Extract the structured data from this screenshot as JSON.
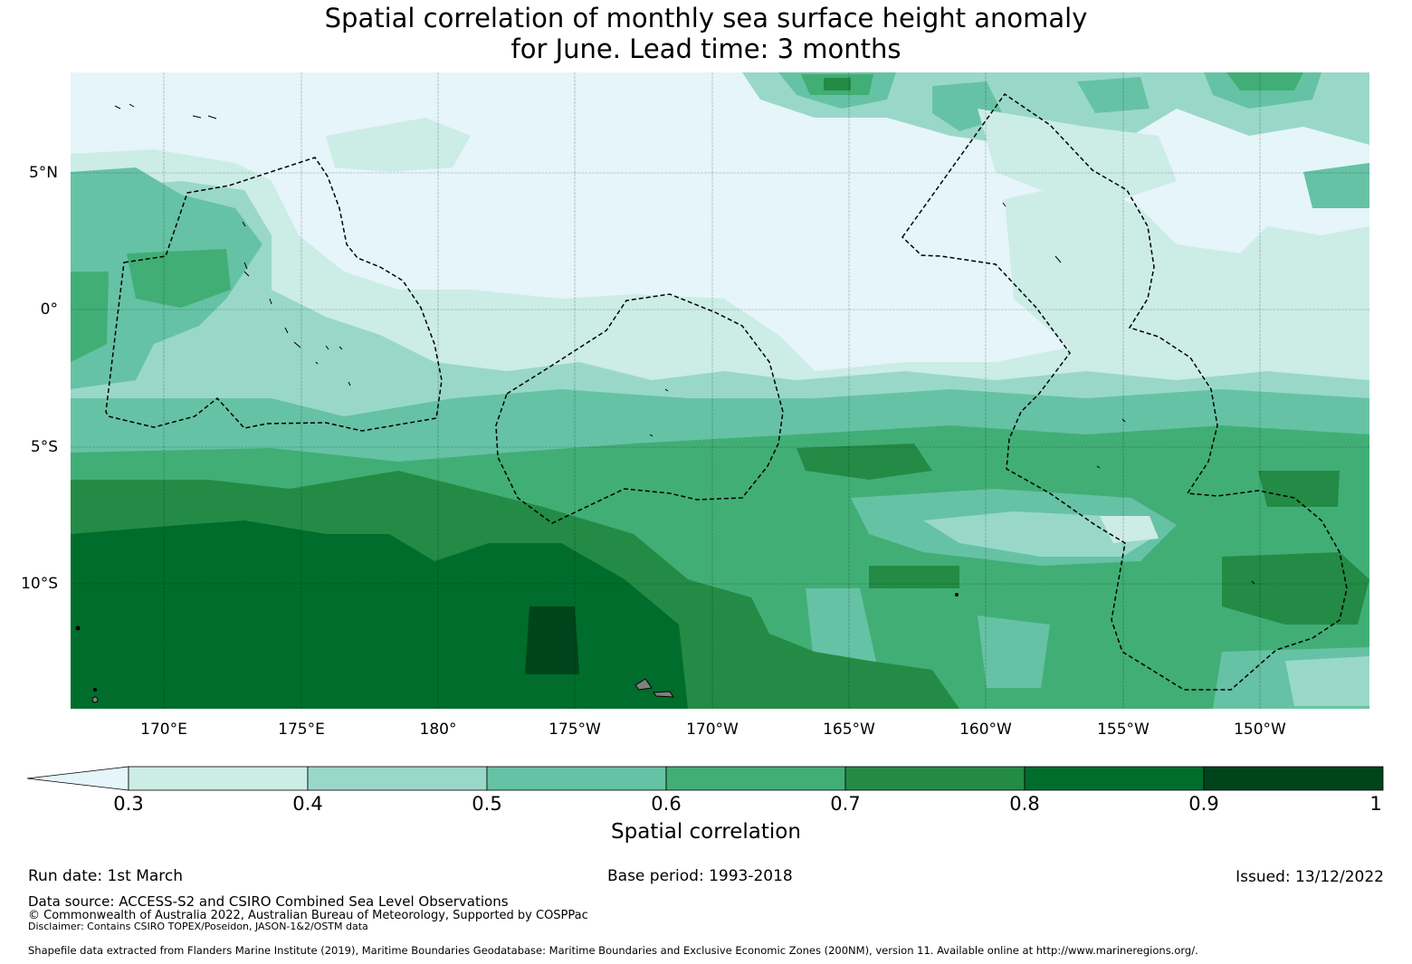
{
  "title": {
    "line1": "Spatial correlation of monthly sea surface height anomaly",
    "line2": "for June. Lead time: 3 months"
  },
  "map": {
    "lat_labels": [
      "5°N",
      "0°",
      "5°S",
      "10°S"
    ],
    "lon_labels": [
      "170°E",
      "175°E",
      "180°",
      "175°W",
      "170°W",
      "165°W",
      "160°W",
      "155°W",
      "150°W"
    ],
    "colors": {
      "lt_0_3": "#e5f5f9",
      "0.3-0.4": "#ccece6",
      "0.4-0.5": "#99d8c9",
      "0.5-0.6": "#66c2a4",
      "0.6-0.7": "#41ae76",
      "0.7-0.8": "#238b45",
      "0.8-0.9": "#006d2c",
      "0.9-1": "#00441b",
      "land": "#808080",
      "eez_boundary": "#000000"
    }
  },
  "colorbar": {
    "ticks": [
      "0.3",
      "0.4",
      "0.5",
      "0.6",
      "0.7",
      "0.8",
      "0.9",
      "1"
    ],
    "label": "Spatial correlation"
  },
  "footer": {
    "run_date": "Run date: 1st March",
    "base_period": "Base period: 1993-2018",
    "issued": "Issued: 13/12/2022",
    "data_source": "Data source: ACCESS-S2 and CSIRO Combined Sea Level Observations",
    "copyright": "© Commonwealth of Australia 2022, Australian Bureau of Meteorology, Supported by COSPPac",
    "disclaimer": "Disclaimer: Contains CSIRO TOPEX/Poseidon, JASON-1&2/OSTM data",
    "shapefile": "Shapefile data extracted from Flanders Marine Institute (2019), Maritime Boundaries Geodatabase: Maritime Boundaries and Exclusive Economic Zones (200NM), version 11. Available online at http://www.marineregions.org/."
  }
}
